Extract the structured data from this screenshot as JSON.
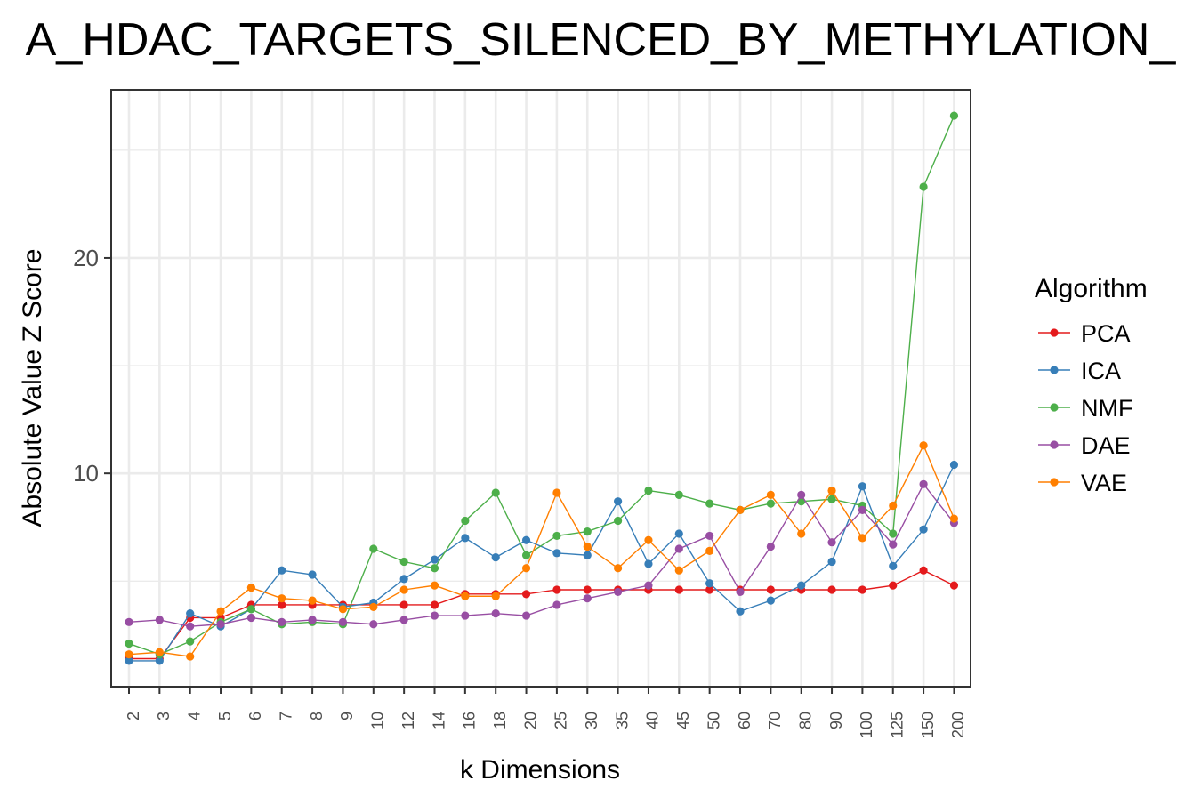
{
  "chart_data": {
    "type": "line",
    "title": "A_HDAC_TARGETS_SILENCED_BY_METHYLATION_",
    "xlabel": "k Dimensions",
    "ylabel": "Absolute Value Z Score",
    "y_ticks": [
      10,
      20
    ],
    "y_tick_labels": [
      "10",
      "20"
    ],
    "ylim": [
      0.1,
      27.8
    ],
    "grid": true,
    "legend_title": "Algorithm",
    "legend_position": "right",
    "categories": [
      "2",
      "3",
      "4",
      "5",
      "6",
      "7",
      "8",
      "9",
      "10",
      "12",
      "14",
      "16",
      "18",
      "20",
      "25",
      "30",
      "35",
      "40",
      "45",
      "50",
      "60",
      "70",
      "80",
      "90",
      "100",
      "125",
      "150",
      "200"
    ],
    "series": [
      {
        "name": "PCA",
        "color": "#E41A1C",
        "values": [
          1.4,
          1.4,
          3.3,
          3.3,
          3.9,
          3.9,
          3.9,
          3.9,
          3.9,
          3.9,
          3.9,
          4.4,
          4.4,
          4.4,
          4.6,
          4.6,
          4.6,
          4.6,
          4.6,
          4.6,
          4.6,
          4.6,
          4.6,
          4.6,
          4.6,
          4.8,
          5.5,
          4.8
        ]
      },
      {
        "name": "ICA",
        "color": "#377EB8",
        "values": [
          1.3,
          1.3,
          3.5,
          2.9,
          3.7,
          5.5,
          5.3,
          3.8,
          4.0,
          5.1,
          6.0,
          7.0,
          6.1,
          6.9,
          6.3,
          6.2,
          8.7,
          5.8,
          7.2,
          4.9,
          3.6,
          4.1,
          4.8,
          5.9,
          9.4,
          5.7,
          7.4,
          10.4
        ]
      },
      {
        "name": "NMF",
        "color": "#4DAF4A",
        "values": [
          2.1,
          1.6,
          2.2,
          3.1,
          3.7,
          3.0,
          3.1,
          3.0,
          6.5,
          5.9,
          5.6,
          7.8,
          9.1,
          6.2,
          7.1,
          7.3,
          7.8,
          9.2,
          9.0,
          8.6,
          8.3,
          8.6,
          8.7,
          8.8,
          8.5,
          7.2,
          23.3,
          26.6
        ]
      },
      {
        "name": "DAE",
        "color": "#984EA3",
        "values": [
          3.1,
          3.2,
          2.9,
          3.0,
          3.3,
          3.1,
          3.2,
          3.1,
          3.0,
          3.2,
          3.4,
          3.4,
          3.5,
          3.4,
          3.9,
          4.2,
          4.5,
          4.8,
          6.5,
          7.1,
          4.5,
          6.6,
          9.0,
          6.8,
          8.3,
          6.7,
          9.5,
          7.7
        ]
      },
      {
        "name": "VAE",
        "color": "#FF7F00",
        "values": [
          1.6,
          1.7,
          1.5,
          3.6,
          4.7,
          4.2,
          4.1,
          3.7,
          3.8,
          4.6,
          4.8,
          4.3,
          4.3,
          5.6,
          9.1,
          6.6,
          5.6,
          6.9,
          5.5,
          6.4,
          8.3,
          9.0,
          7.2,
          9.2,
          7.0,
          8.5,
          11.3,
          7.9
        ]
      }
    ]
  }
}
